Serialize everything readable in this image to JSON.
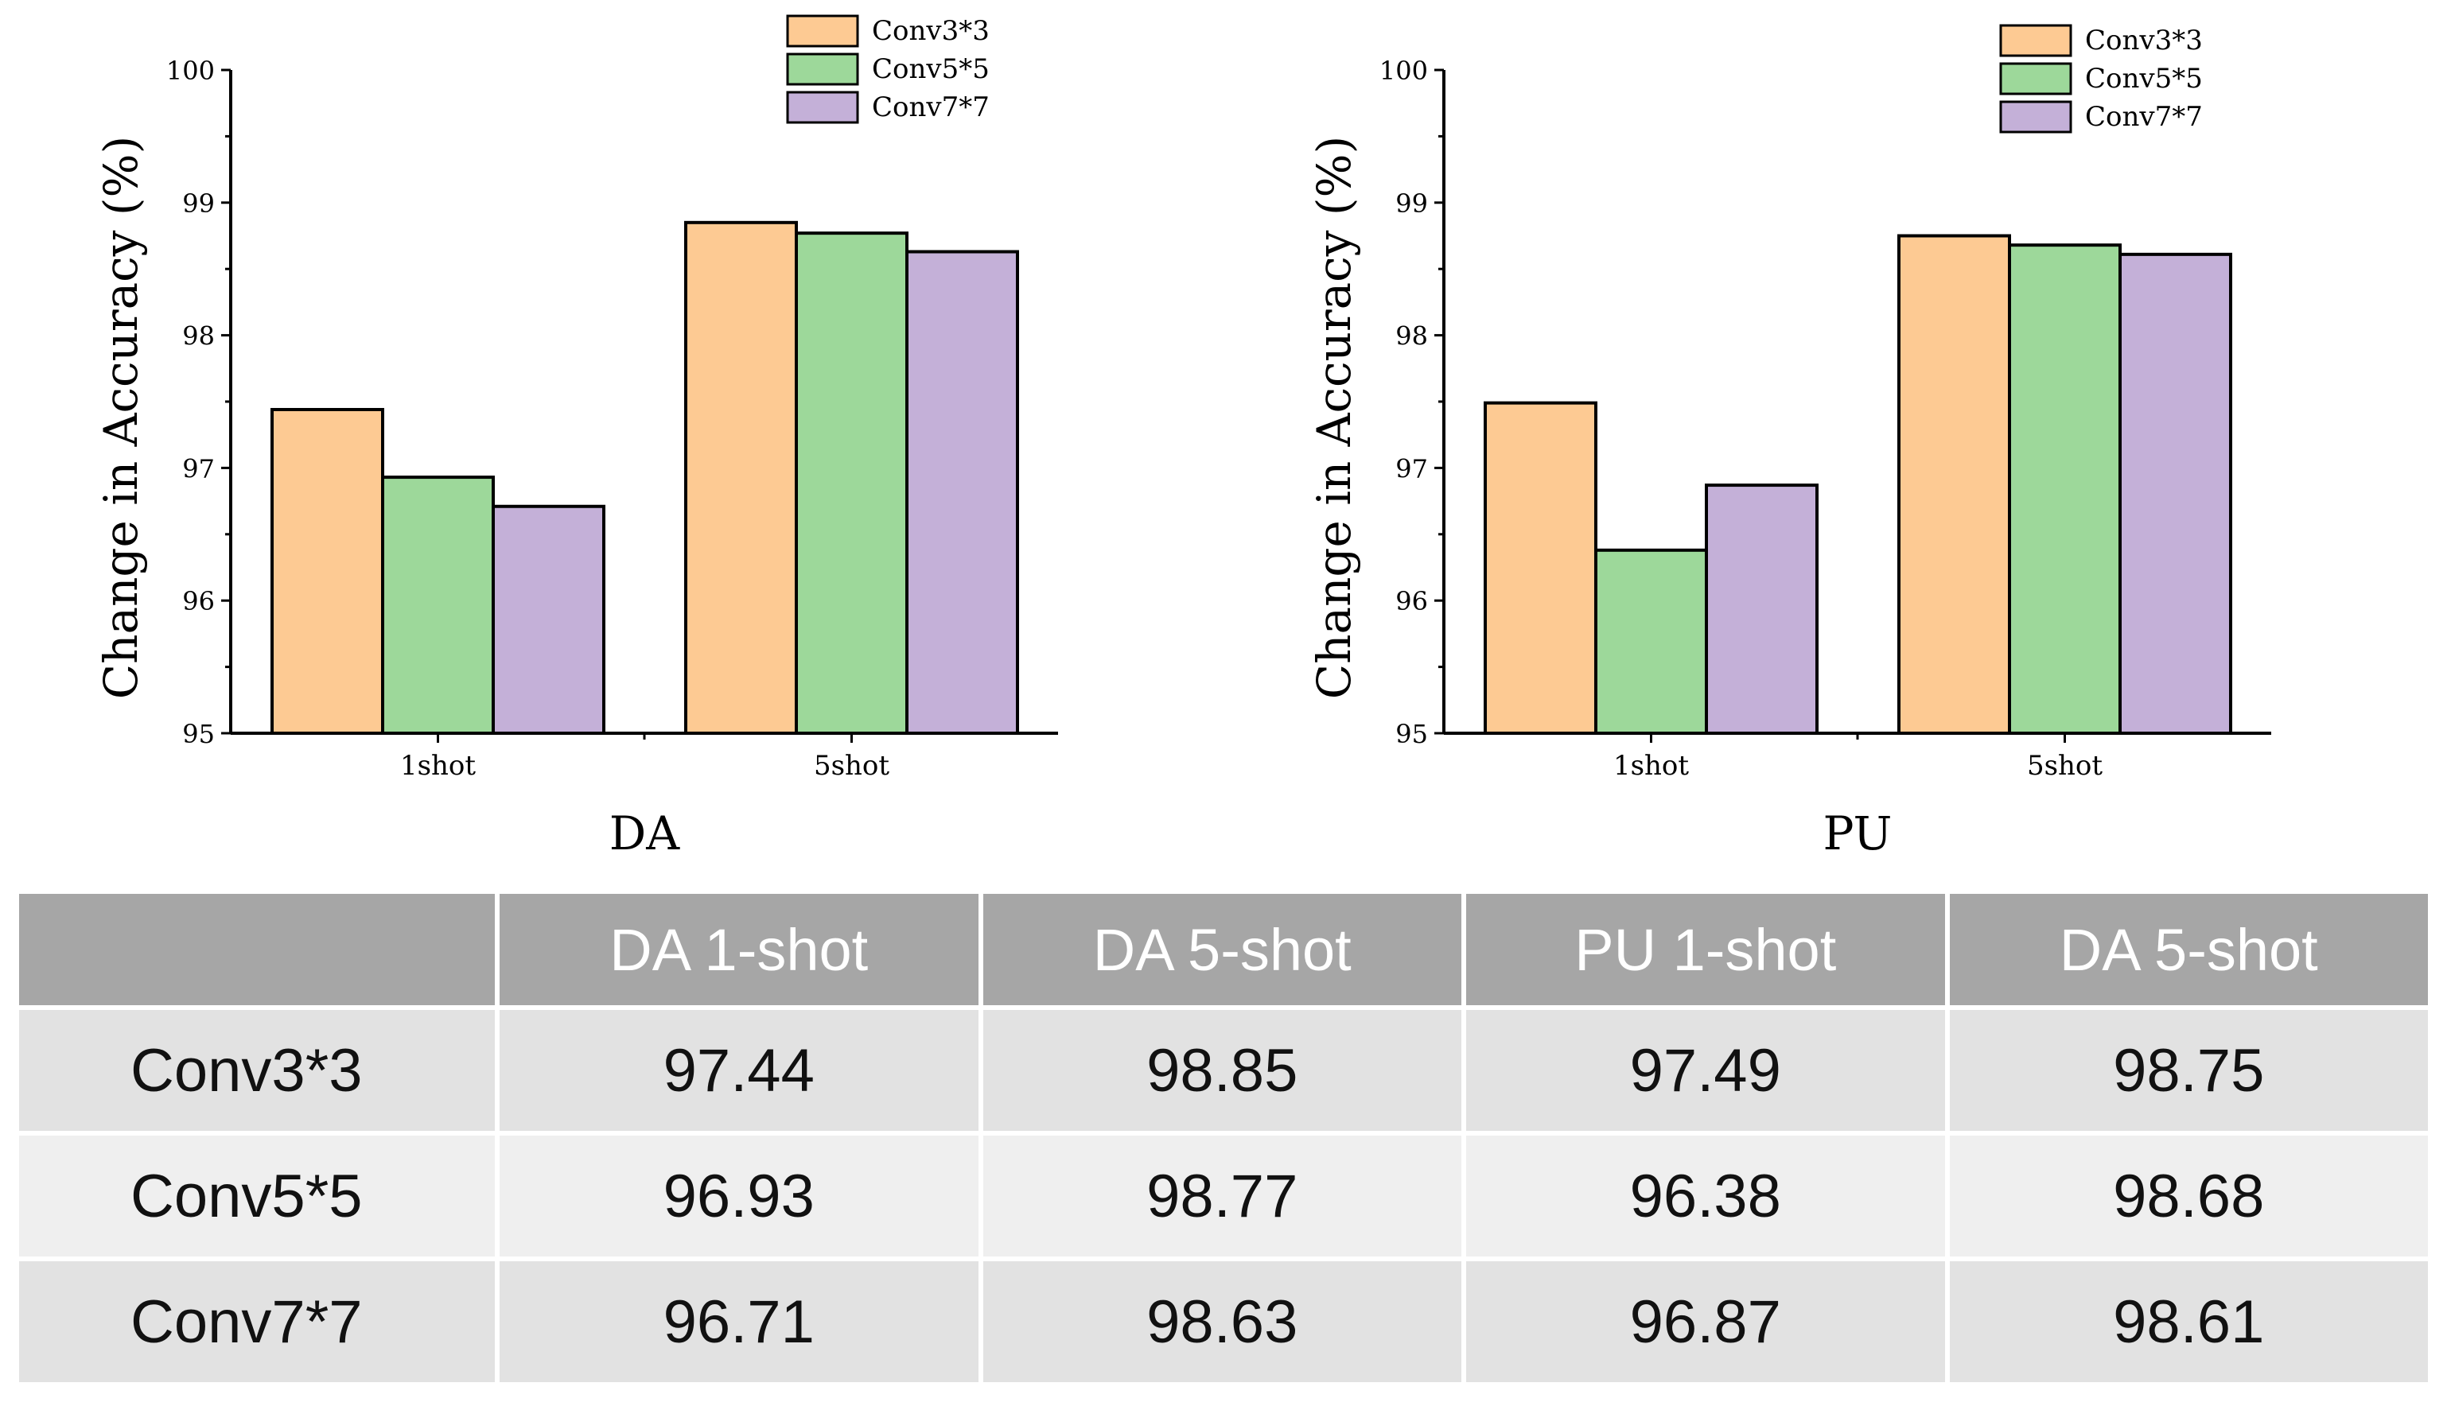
{
  "colors": {
    "conv3": "#fdca93",
    "conv5": "#9dd89a",
    "conv7": "#c4b0d8",
    "table_header_bg": "#a6a6a6",
    "table_row_dark": "#e2e2e2",
    "table_row_light": "#efefef"
  },
  "chart_data": [
    {
      "type": "bar",
      "title": "DA",
      "xlabel": "DA",
      "ylabel": "Change in Accuracy (%)",
      "categories": [
        "1shot",
        "5shot"
      ],
      "ylim": [
        95,
        100
      ],
      "yticks": [
        "95",
        "96",
        "97",
        "98",
        "99",
        "100"
      ],
      "legend_position": "top-right",
      "grid": false,
      "series": [
        {
          "name": "Conv3*3",
          "values": [
            97.44,
            98.85
          ]
        },
        {
          "name": "Conv5*5",
          "values": [
            96.93,
            98.77
          ]
        },
        {
          "name": "Conv7*7",
          "values": [
            96.71,
            98.63
          ]
        }
      ]
    },
    {
      "type": "bar",
      "title": "PU",
      "xlabel": "PU",
      "ylabel": "Change in Accuracy (%)",
      "categories": [
        "1shot",
        "5shot"
      ],
      "ylim": [
        95,
        100
      ],
      "yticks": [
        "95",
        "96",
        "97",
        "98",
        "99",
        "100"
      ],
      "legend_position": "top-right",
      "grid": false,
      "series": [
        {
          "name": "Conv3*3",
          "values": [
            97.49,
            98.75
          ]
        },
        {
          "name": "Conv5*5",
          "values": [
            96.38,
            98.68
          ]
        },
        {
          "name": "Conv7*7",
          "values": [
            96.87,
            98.61
          ]
        }
      ]
    }
  ],
  "table": {
    "headers": [
      "",
      "DA 1-shot",
      "DA 5-shot",
      "PU 1-shot",
      "DA 5-shot"
    ],
    "rows": [
      {
        "label": "Conv3*3",
        "values": [
          "97.44",
          "98.85",
          "97.49",
          "98.75"
        ]
      },
      {
        "label": "Conv5*5",
        "values": [
          "96.93",
          "98.77",
          "96.38",
          "98.68"
        ]
      },
      {
        "label": "Conv7*7",
        "values": [
          "96.71",
          "98.63",
          "96.87",
          "98.61"
        ]
      }
    ]
  }
}
